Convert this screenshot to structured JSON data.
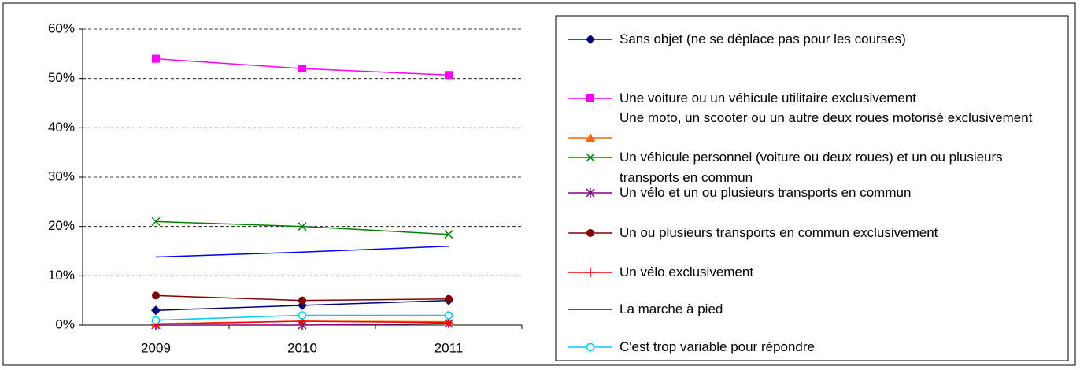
{
  "chart_data": {
    "type": "line",
    "categories": [
      "2009",
      "2010",
      "2011"
    ],
    "ylim": [
      0,
      60
    ],
    "yticks": [
      {
        "value": 0,
        "label": "0%"
      },
      {
        "value": 10,
        "label": "10%"
      },
      {
        "value": 20,
        "label": "20%"
      },
      {
        "value": 30,
        "label": "30%"
      },
      {
        "value": 40,
        "label": "40%"
      },
      {
        "value": 50,
        "label": "50%"
      },
      {
        "value": 60,
        "label": "60%"
      }
    ],
    "grid": true,
    "legend": "right",
    "series": [
      {
        "name": "Sans objet (ne se déplace pas pour les courses)",
        "color": "#000080",
        "marker": "diamond",
        "values": [
          3,
          4,
          5
        ]
      },
      {
        "name": "Une voiture ou un véhicule utilitaire exclusivement",
        "color": "#ff00ff",
        "marker": "square",
        "values": [
          54,
          52,
          50.7
        ]
      },
      {
        "name": "Une moto, un scooter ou un autre deux roues motorisé exclusivement",
        "color": "#ff6600",
        "marker": "triangle",
        "values": [
          0.3,
          0.8,
          0.7
        ]
      },
      {
        "name": "Un véhicule personnel (voiture ou deux roues) et  un ou plusieurs transports en commun",
        "color": "#008000",
        "marker": "x",
        "values": [
          21,
          20,
          18.4
        ]
      },
      {
        "name": "Un vélo et un ou plusieurs transports en commun",
        "color": "#800080",
        "marker": "star",
        "values": [
          0,
          0,
          0.3
        ]
      },
      {
        "name": "Un ou plusieurs transports en commun exclusivement",
        "color": "#800000",
        "marker": "circle",
        "values": [
          6,
          5,
          5.3
        ]
      },
      {
        "name": "Un vélo exclusivement",
        "color": "#ff0000",
        "marker": "plus",
        "values": [
          0.2,
          0.8,
          0.5
        ]
      },
      {
        "name": "La marche à pied",
        "color": "#0000ff",
        "values": [
          13.8,
          14.8,
          16
        ]
      },
      {
        "name": "C'est trop variable pour répondre",
        "color": "#00ccff",
        "marker": "open-circle",
        "values": [
          1,
          2,
          2
        ]
      }
    ]
  }
}
